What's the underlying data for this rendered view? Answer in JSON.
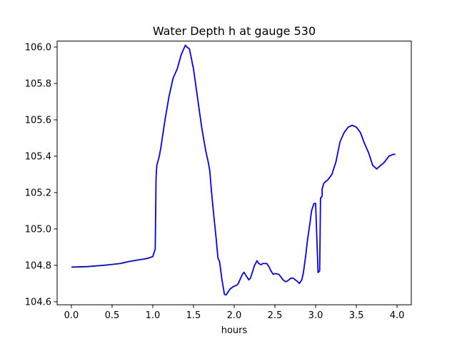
{
  "chart_data": {
    "type": "line",
    "title": "Water Depth h at gauge 530",
    "xlabel": "hours",
    "ylabel": "",
    "xlim": [
      -0.175,
      4.175
    ],
    "ylim": [
      104.583,
      106.033
    ],
    "xticks": [
      0.0,
      0.5,
      1.0,
      1.5,
      2.0,
      2.5,
      3.0,
      3.5,
      4.0
    ],
    "xtick_labels": [
      "0.0",
      "0.5",
      "1.0",
      "1.5",
      "2.0",
      "2.5",
      "3.0",
      "3.5",
      "4.0"
    ],
    "yticks": [
      104.6,
      104.8,
      105.0,
      105.2,
      105.4,
      105.6,
      105.8,
      106.0
    ],
    "ytick_labels": [
      "104.6",
      "104.8",
      "105.0",
      "105.2",
      "105.4",
      "105.6",
      "105.8",
      "106.0"
    ],
    "grid": false,
    "series": [
      {
        "color": "#0000ff",
        "x": [
          0.0,
          0.2,
          0.4,
          0.6,
          0.65,
          0.7,
          0.8,
          0.9,
          0.95,
          1.0,
          1.03,
          1.04,
          1.045,
          1.05,
          1.08,
          1.1,
          1.15,
          1.2,
          1.25,
          1.3,
          1.35,
          1.38,
          1.4,
          1.42,
          1.45,
          1.5,
          1.55,
          1.6,
          1.65,
          1.68,
          1.7,
          1.72,
          1.75,
          1.78,
          1.8,
          1.82,
          1.85,
          1.88,
          1.9,
          1.92,
          1.95,
          1.98,
          2.0,
          2.03,
          2.05,
          2.07,
          2.1,
          2.12,
          2.15,
          2.18,
          2.2,
          2.25,
          2.28,
          2.3,
          2.33,
          2.35,
          2.38,
          2.4,
          2.43,
          2.45,
          2.48,
          2.5,
          2.55,
          2.6,
          2.63,
          2.65,
          2.7,
          2.73,
          2.75,
          2.78,
          2.8,
          2.83,
          2.85,
          2.88,
          2.9,
          2.93,
          2.95,
          2.98,
          3.0,
          3.03,
          3.05,
          3.05,
          3.06,
          3.08,
          3.08,
          3.1,
          3.12,
          3.15,
          3.2,
          3.25,
          3.3,
          3.35,
          3.4,
          3.45,
          3.5,
          3.55,
          3.6,
          3.65,
          3.7,
          3.75,
          3.8,
          3.83,
          3.85,
          3.9,
          3.95,
          3.98
        ],
        "y": [
          104.79,
          104.793,
          104.8,
          104.81,
          104.815,
          104.82,
          104.828,
          104.835,
          104.84,
          104.848,
          104.89,
          105.28,
          105.32,
          105.35,
          105.4,
          105.45,
          105.6,
          105.73,
          105.83,
          105.88,
          105.96,
          105.99,
          106.01,
          106.0,
          105.99,
          105.88,
          105.72,
          105.56,
          105.43,
          105.37,
          105.32,
          105.21,
          105.07,
          104.94,
          104.84,
          104.82,
          104.72,
          104.64,
          104.637,
          104.65,
          104.67,
          104.68,
          104.685,
          104.69,
          104.7,
          104.72,
          104.75,
          104.762,
          104.74,
          104.72,
          104.73,
          104.8,
          104.825,
          104.81,
          104.803,
          104.81,
          104.81,
          104.81,
          104.79,
          104.77,
          104.75,
          104.755,
          104.75,
          104.72,
          104.71,
          104.713,
          104.73,
          104.728,
          104.72,
          104.71,
          104.7,
          104.72,
          104.76,
          104.86,
          104.94,
          105.03,
          105.1,
          105.14,
          105.14,
          104.76,
          104.77,
          104.78,
          105.17,
          105.18,
          105.22,
          105.25,
          105.26,
          105.27,
          105.3,
          105.37,
          105.48,
          105.53,
          105.56,
          105.57,
          105.56,
          105.53,
          105.47,
          105.42,
          105.35,
          105.33,
          105.35,
          105.36,
          105.37,
          105.4,
          105.41,
          105.41
        ]
      }
    ]
  }
}
